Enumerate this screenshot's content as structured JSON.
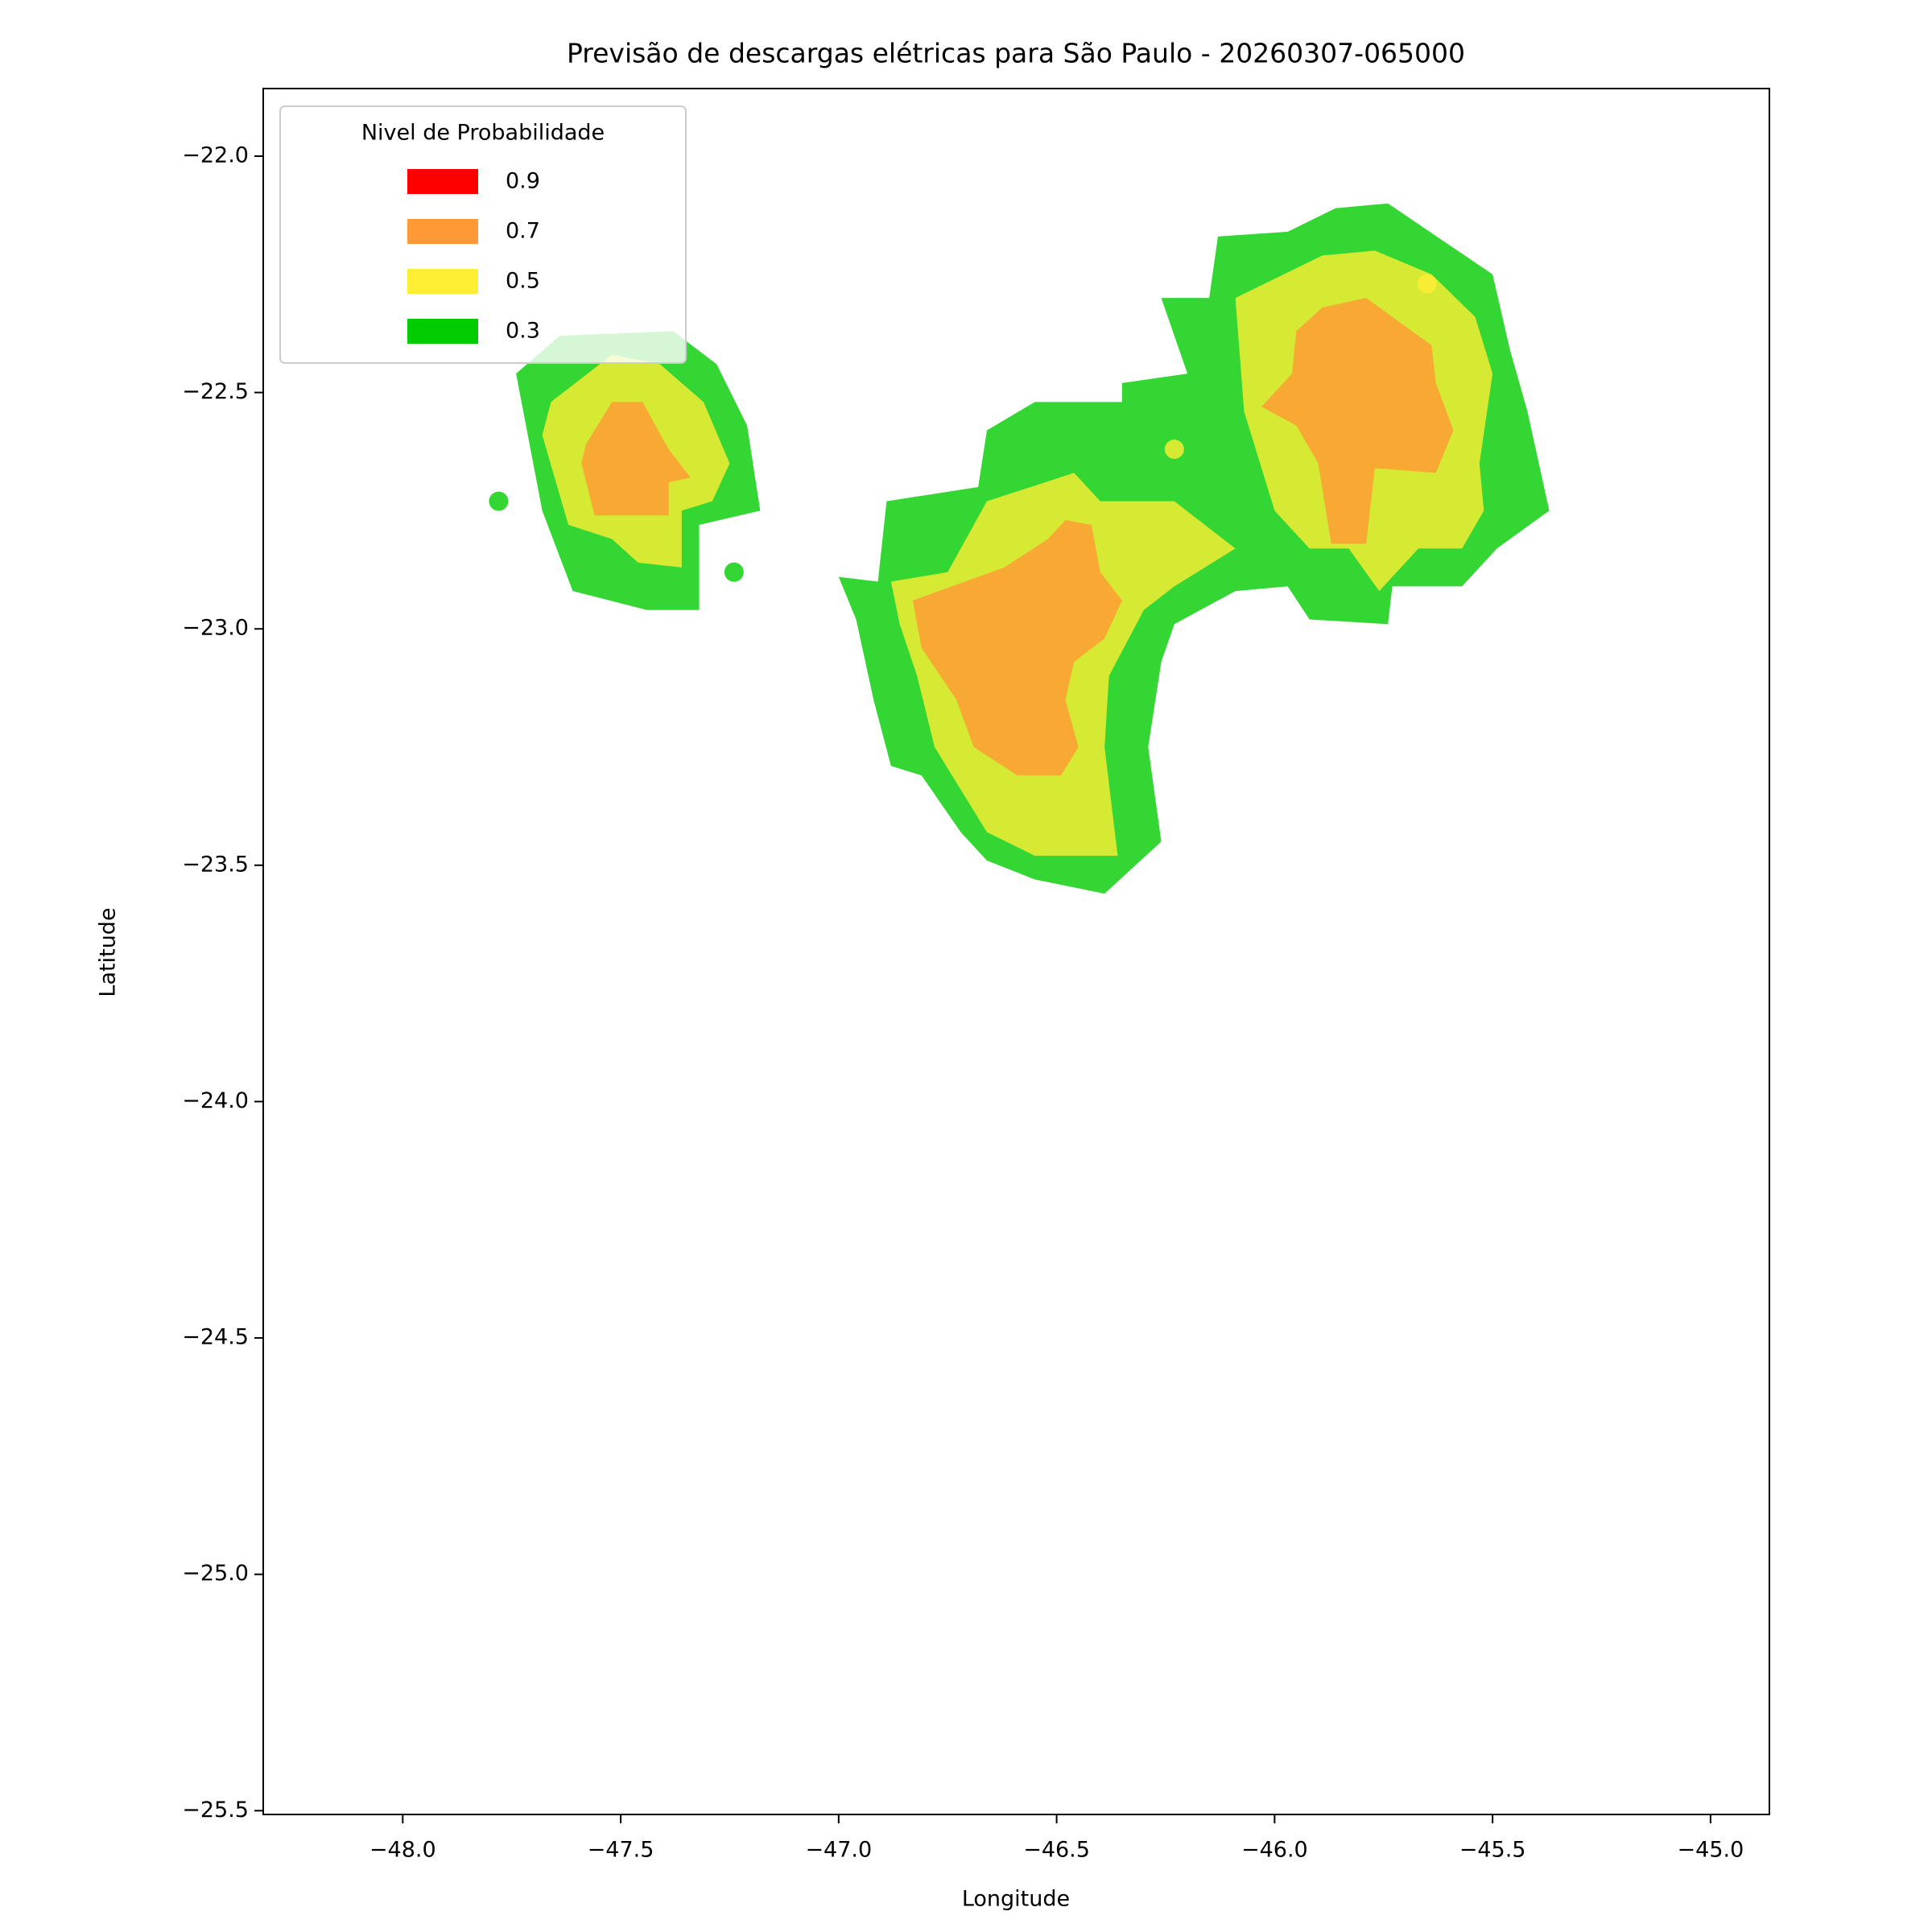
{
  "chart_data": {
    "type": "contourf",
    "title": "Previsão de descargas elétricas para São Paulo - 20260307-065000",
    "xlabel": "Longitude",
    "ylabel": "Latitude",
    "xlim": [
      -48.32,
      -44.865
    ],
    "ylim": [
      -25.508,
      -21.857
    ],
    "xticks": [
      {
        "value": -48,
        "label": "−48.0"
      },
      {
        "value": -47.5,
        "label": "−47.5"
      },
      {
        "value": -47,
        "label": "−47.0"
      },
      {
        "value": -46.5,
        "label": "−46.5"
      },
      {
        "value": -46,
        "label": "−46.0"
      },
      {
        "value": -45.5,
        "label": "−45.5"
      },
      {
        "value": -45,
        "label": "−45.0"
      }
    ],
    "yticks": [
      {
        "value": -22,
        "label": "−22.0"
      },
      {
        "value": -22.5,
        "label": "−22.5"
      },
      {
        "value": -23,
        "label": "−23.0"
      },
      {
        "value": -23.5,
        "label": "−23.5"
      },
      {
        "value": -24,
        "label": "−24.0"
      },
      {
        "value": -24.5,
        "label": "−24.5"
      },
      {
        "value": -25,
        "label": "−25.0"
      },
      {
        "value": -25.5,
        "label": "−25.5"
      }
    ],
    "legend": {
      "title": "Nivel de Probabilidade",
      "corner": "upper left"
    },
    "alpha": 0.8,
    "series": [
      {
        "name": "0.3",
        "color": "#00cc00",
        "regions": [
          [
            [
              -47.74,
              -22.46
            ],
            [
              -47.64,
              -22.38
            ],
            [
              -47.38,
              -22.37
            ],
            [
              -47.28,
              -22.44
            ],
            [
              -47.21,
              -22.57
            ],
            [
              -47.18,
              -22.75
            ],
            [
              -47.32,
              -22.78
            ],
            [
              -47.32,
              -22.96
            ],
            [
              -47.44,
              -22.96
            ],
            [
              -47.61,
              -22.92
            ],
            [
              -47.68,
              -22.75
            ]
          ],
          [
            [
              -47.0,
              -22.89
            ],
            [
              -46.91,
              -22.9
            ],
            [
              -46.89,
              -22.73
            ],
            [
              -46.68,
              -22.7
            ],
            [
              -46.66,
              -22.58
            ],
            [
              -46.55,
              -22.52
            ],
            [
              -46.35,
              -22.52
            ],
            [
              -46.35,
              -22.48
            ],
            [
              -46.2,
              -22.46
            ],
            [
              -46.26,
              -22.3
            ],
            [
              -46.15,
              -22.3
            ],
            [
              -46.13,
              -22.17
            ],
            [
              -45.97,
              -22.16
            ],
            [
              -45.86,
              -22.11
            ],
            [
              -45.74,
              -22.1
            ],
            [
              -45.5,
              -22.25
            ],
            [
              -45.46,
              -22.41
            ],
            [
              -45.42,
              -22.54
            ],
            [
              -45.37,
              -22.75
            ],
            [
              -45.49,
              -22.83
            ],
            [
              -45.57,
              -22.91
            ],
            [
              -45.73,
              -22.91
            ],
            [
              -45.74,
              -22.99
            ],
            [
              -45.92,
              -22.98
            ],
            [
              -45.97,
              -22.91
            ],
            [
              -46.09,
              -22.92
            ],
            [
              -46.23,
              -22.99
            ],
            [
              -46.26,
              -23.07
            ],
            [
              -46.29,
              -23.25
            ],
            [
              -46.26,
              -23.45
            ],
            [
              -46.39,
              -23.56
            ],
            [
              -46.55,
              -23.53
            ],
            [
              -46.66,
              -23.49
            ],
            [
              -46.72,
              -23.43
            ],
            [
              -46.81,
              -23.31
            ],
            [
              -46.88,
              -23.29
            ],
            [
              -46.92,
              -23.15
            ],
            [
              -46.96,
              -22.98
            ]
          ]
        ],
        "points": [
          [
            -47.78,
            -22.73
          ],
          [
            -47.24,
            -22.88
          ]
        ]
      },
      {
        "name": "0.5",
        "color": "#ffee33",
        "regions": [
          [
            [
              -47.66,
              -22.52
            ],
            [
              -47.52,
              -22.42
            ],
            [
              -47.41,
              -22.44
            ],
            [
              -47.31,
              -22.52
            ],
            [
              -47.25,
              -22.65
            ],
            [
              -47.29,
              -22.73
            ],
            [
              -47.36,
              -22.75
            ],
            [
              -47.36,
              -22.87
            ],
            [
              -47.46,
              -22.86
            ],
            [
              -47.52,
              -22.81
            ],
            [
              -47.62,
              -22.78
            ],
            [
              -47.68,
              -22.59
            ]
          ],
          [
            [
              -46.88,
              -22.9
            ],
            [
              -46.75,
              -22.88
            ],
            [
              -46.66,
              -22.73
            ],
            [
              -46.46,
              -22.67
            ],
            [
              -46.4,
              -22.73
            ],
            [
              -46.23,
              -22.73
            ],
            [
              -46.09,
              -22.83
            ],
            [
              -46.23,
              -22.91
            ],
            [
              -46.3,
              -22.96
            ],
            [
              -46.38,
              -23.1
            ],
            [
              -46.39,
              -23.25
            ],
            [
              -46.36,
              -23.48
            ],
            [
              -46.55,
              -23.48
            ],
            [
              -46.66,
              -23.43
            ],
            [
              -46.78,
              -23.25
            ],
            [
              -46.82,
              -23.1
            ],
            [
              -46.86,
              -22.99
            ]
          ],
          [
            [
              -46.09,
              -22.3
            ],
            [
              -45.89,
              -22.21
            ],
            [
              -45.77,
              -22.2
            ],
            [
              -45.64,
              -22.25
            ],
            [
              -45.54,
              -22.34
            ],
            [
              -45.5,
              -22.46
            ],
            [
              -45.53,
              -22.65
            ],
            [
              -45.52,
              -22.75
            ],
            [
              -45.57,
              -22.83
            ],
            [
              -45.67,
              -22.83
            ],
            [
              -45.76,
              -22.92
            ],
            [
              -45.83,
              -22.83
            ],
            [
              -45.92,
              -22.83
            ],
            [
              -46.0,
              -22.75
            ],
            [
              -46.07,
              -22.54
            ]
          ]
        ],
        "points": [
          [
            -45.65,
            -22.27
          ],
          [
            -46.23,
            -22.62
          ]
        ]
      },
      {
        "name": "0.7",
        "color": "#ff9933",
        "regions": [
          [
            [
              -47.58,
              -22.61
            ],
            [
              -47.52,
              -22.52
            ],
            [
              -47.45,
              -22.52
            ],
            [
              -47.39,
              -22.62
            ],
            [
              -47.34,
              -22.68
            ],
            [
              -47.39,
              -22.69
            ],
            [
              -47.39,
              -22.76
            ],
            [
              -47.56,
              -22.76
            ],
            [
              -47.59,
              -22.65
            ]
          ],
          [
            [
              -46.83,
              -22.94
            ],
            [
              -46.62,
              -22.87
            ],
            [
              -46.52,
              -22.81
            ],
            [
              -46.48,
              -22.77
            ],
            [
              -46.42,
              -22.78
            ],
            [
              -46.4,
              -22.88
            ],
            [
              -46.35,
              -22.94
            ],
            [
              -46.39,
              -23.02
            ],
            [
              -46.46,
              -23.07
            ],
            [
              -46.48,
              -23.15
            ],
            [
              -46.45,
              -23.25
            ],
            [
              -46.49,
              -23.31
            ],
            [
              -46.59,
              -23.31
            ],
            [
              -46.69,
              -23.25
            ],
            [
              -46.73,
              -23.15
            ],
            [
              -46.81,
              -23.04
            ]
          ],
          [
            [
              -45.95,
              -22.37
            ],
            [
              -45.89,
              -22.32
            ],
            [
              -45.79,
              -22.3
            ],
            [
              -45.64,
              -22.4
            ],
            [
              -45.63,
              -22.48
            ],
            [
              -45.59,
              -22.58
            ],
            [
              -45.63,
              -22.67
            ],
            [
              -45.77,
              -22.66
            ],
            [
              -45.79,
              -22.82
            ],
            [
              -45.87,
              -22.82
            ],
            [
              -45.9,
              -22.65
            ],
            [
              -45.95,
              -22.57
            ],
            [
              -46.03,
              -22.53
            ],
            [
              -45.96,
              -22.46
            ]
          ]
        ],
        "points": []
      },
      {
        "name": "0.9",
        "color": "#ff0000",
        "regions": [],
        "points": []
      }
    ]
  }
}
